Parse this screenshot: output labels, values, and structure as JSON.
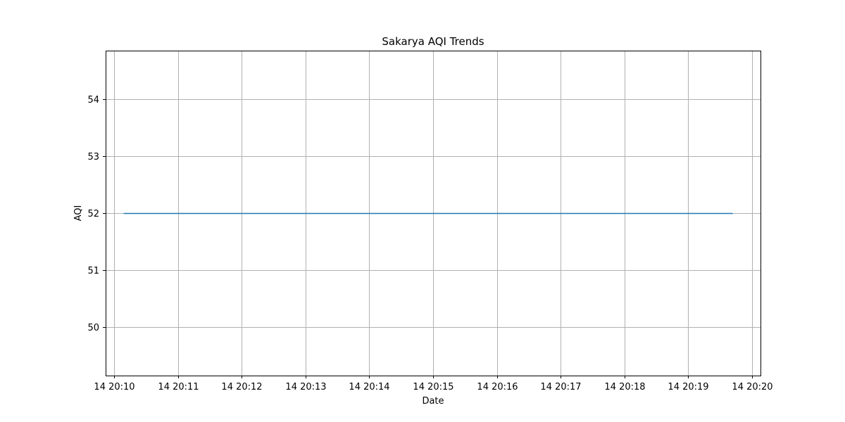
{
  "chart_data": {
    "type": "line",
    "title": "Sakarya AQI Trends",
    "xlabel": "Date",
    "ylabel": "AQI",
    "x_ticks": [
      "14 20:10",
      "14 20:11",
      "14 20:12",
      "14 20:13",
      "14 20:14",
      "14 20:15",
      "14 20:16",
      "14 20:17",
      "14 20:18",
      "14 20:19",
      "14 20:20"
    ],
    "y_ticks": [
      50,
      51,
      52,
      53,
      54
    ],
    "xlim": [
      "20:09:52",
      "20:20:08"
    ],
    "ylim": [
      49.15,
      54.85
    ],
    "grid": true,
    "series": [
      {
        "color": "#1f77b4",
        "x": [
          "20:10:09",
          "20:19:42"
        ],
        "y": [
          52,
          52
        ]
      }
    ]
  }
}
